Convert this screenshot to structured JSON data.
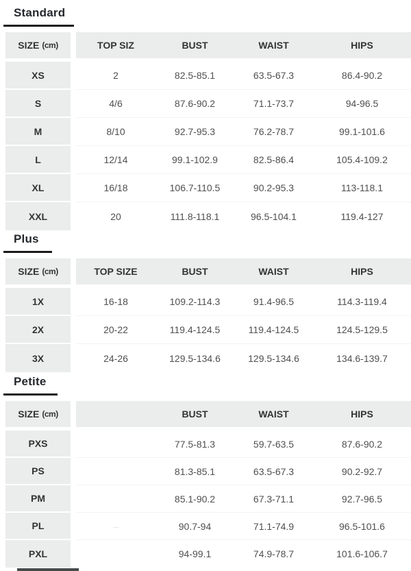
{
  "styles": {
    "header_bg": "#ebecec",
    "title_color": "#24282c",
    "underline_color": "#1b1b1b",
    "header_text": "#333333",
    "cell_text": "#4f4f4f",
    "size_text": "#333333",
    "row_divider": "#f3f3f3",
    "faint_mark": "#e4e8e8",
    "cutoff_bar": "#464b4b"
  },
  "sections": [
    {
      "id": "standard",
      "title": "Standard",
      "underline_width": 103,
      "columns": {
        "size_label": "SIZE",
        "size_unit": "(cm)",
        "top": "TOP SIZ",
        "bust": "BUST",
        "waist": "WAIST",
        "hips": "HIPS"
      },
      "rows": [
        {
          "size": "XS",
          "top": "2",
          "bust": "82.5-85.1",
          "waist": "63.5-67.3",
          "hips": "86.4-90.2"
        },
        {
          "size": "S",
          "top": "4/6",
          "bust": "87.6-90.2",
          "waist": "71.1-73.7",
          "hips": "94-96.5"
        },
        {
          "size": "M",
          "top": "8/10",
          "bust": "92.7-95.3",
          "waist": "76.2-78.7",
          "hips": "99.1-101.6"
        },
        {
          "size": "L",
          "top": "12/14",
          "bust": "99.1-102.9",
          "waist": "82.5-86.4",
          "hips": "105.4-109.2"
        },
        {
          "size": "XL",
          "top": "16/18",
          "bust": "106.7-110.5",
          "waist": "90.2-95.3",
          "hips": "113-118.1"
        },
        {
          "size": "XXL",
          "top": "20",
          "bust": "111.8-118.1",
          "waist": "96.5-104.1",
          "hips": "119.4-127"
        }
      ]
    },
    {
      "id": "plus",
      "title": "Plus",
      "underline_width": 71,
      "columns": {
        "size_label": "SIZE",
        "size_unit": "(cm)",
        "top": "TOP SIZE",
        "bust": "BUST",
        "waist": "WAIST",
        "hips": "HIPS"
      },
      "rows": [
        {
          "size": "1X",
          "top": "16-18",
          "bust": "109.2-114.3",
          "waist": "91.4-96.5",
          "hips": "114.3-119.4"
        },
        {
          "size": "2X",
          "top": "20-22",
          "bust": "119.4-124.5",
          "waist": "119.4-124.5",
          "hips": "124.5-129.5"
        },
        {
          "size": "3X",
          "top": "24-26",
          "bust": "129.5-134.6",
          "waist": "129.5-134.6",
          "hips": "134.6-139.7"
        }
      ]
    },
    {
      "id": "petite",
      "title": "Petite",
      "underline_width": 79,
      "columns": {
        "size_label": "SIZE",
        "size_unit": "(cm)",
        "top": "",
        "bust": "BUST",
        "waist": "WAIST",
        "hips": "HIPS"
      },
      "rows": [
        {
          "size": "PXS",
          "top": "",
          "bust": "77.5-81.3",
          "waist": "59.7-63.5",
          "hips": "87.6-90.2"
        },
        {
          "size": "PS",
          "top": "",
          "bust": "81.3-85.1",
          "waist": "63.5-67.3",
          "hips": "90.2-92.7"
        },
        {
          "size": "PM",
          "top": "",
          "bust": "85.1-90.2",
          "waist": "67.3-71.1",
          "hips": "92.7-96.5"
        },
        {
          "size": "PL",
          "top": "–",
          "top_faint": true,
          "bust": "90.7-94",
          "waist": "71.1-74.9",
          "hips": "96.5-101.6"
        },
        {
          "size": "PXL",
          "top": "",
          "bust": "94-99.1",
          "waist": "74.9-78.7",
          "hips": "101.6-106.7"
        }
      ]
    }
  ],
  "cutoff_bar": {
    "visible": true
  }
}
